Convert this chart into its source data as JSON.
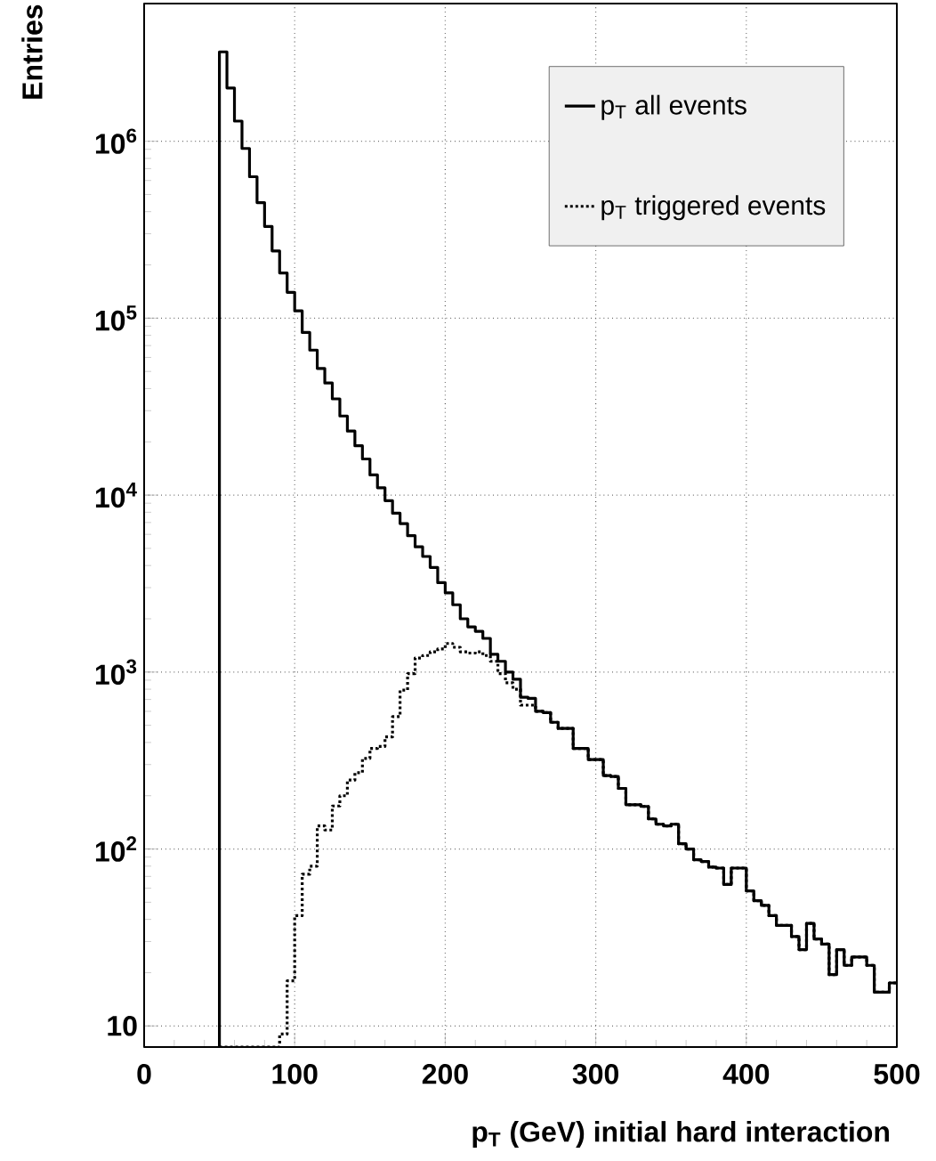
{
  "chart_data": {
    "type": "histogram",
    "xlabel": "p$_{T}$ (GeV) initial hard interaction",
    "ylabel": "Entries",
    "bins": [
      50,
      55,
      60,
      65,
      70,
      75,
      80,
      85,
      90,
      95,
      100,
      105,
      110,
      115,
      120,
      125,
      130,
      135,
      140,
      145,
      150,
      155,
      160,
      165,
      170,
      175,
      180,
      185,
      190,
      195,
      200,
      205,
      210,
      215,
      220,
      225,
      230,
      235,
      240,
      245,
      250,
      255,
      260,
      265,
      270,
      275,
      280,
      285,
      290,
      295,
      300,
      305,
      310,
      315,
      320,
      325,
      330,
      335,
      340,
      345,
      350,
      355,
      360,
      365,
      370,
      375,
      380,
      385,
      390,
      395,
      400,
      405,
      410,
      415,
      420,
      425,
      430,
      435,
      440,
      445,
      450,
      455,
      460,
      465,
      470,
      475,
      480,
      485,
      490,
      495,
      500
    ],
    "series": [
      {
        "name": "p$_{T}$ triggered events",
        "color": "#000000",
        "line_style": "dotted",
        "values": [
          null,
          null,
          null,
          null,
          null,
          null,
          null,
          null,
          9,
          18,
          42,
          72,
          80,
          135,
          128,
          175,
          200,
          245,
          270,
          325,
          370,
          380,
          430,
          560,
          790,
          980,
          1200,
          1240,
          1300,
          1350,
          1450,
          1380,
          1300,
          1280,
          1300,
          1240,
          1150,
          980,
          870,
          800,
          650,
          650,
          600,
          590,
          520,
          480,
          480,
          370,
          370,
          320,
          320,
          260,
          257,
          220,
          178,
          178,
          174,
          148,
          138,
          135,
          138,
          107,
          100,
          87,
          85,
          79,
          78,
          63,
          78,
          78,
          58,
          51,
          48,
          42,
          37,
          37,
          32,
          27,
          38,
          31,
          29,
          19.5,
          27,
          22,
          24.5,
          24.5,
          22,
          15.5,
          15.5,
          17.5
        ]
      },
      {
        "name": "p$_{T}$ all events",
        "color": "#000000",
        "line_style": "solid",
        "values": [
          3200000,
          2000000,
          1300000,
          910000,
          630000,
          450000,
          330000,
          240000,
          180000,
          140000,
          110000,
          83000,
          66000,
          52000,
          43000,
          35000,
          28000,
          23000,
          19000,
          16000,
          13000,
          11000,
          9300,
          7900,
          6900,
          5900,
          5100,
          4500,
          3900,
          3200,
          2800,
          2400,
          2000,
          1800,
          1700,
          1550,
          1260,
          1150,
          1000,
          910,
          720,
          710,
          600,
          590,
          520,
          480,
          480,
          370,
          370,
          320,
          320,
          260,
          257,
          220,
          178,
          178,
          174,
          148,
          138,
          135,
          138,
          107,
          100,
          87,
          85,
          79,
          78,
          63,
          78,
          78,
          58,
          51,
          48,
          42,
          37,
          37,
          32,
          27,
          38,
          31,
          29,
          19.5,
          27,
          22,
          24.5,
          24.5,
          22,
          15.5,
          15.5,
          17.5
        ]
      }
    ],
    "log": "y",
    "xlim": [
      0,
      500
    ],
    "ylim": [
      7.6,
      6000000
    ],
    "xticks": [
      0,
      100,
      200,
      300,
      400,
      500
    ],
    "yticks": [
      10,
      {
        "value": 100,
        "label": "10$^{2}$"
      },
      {
        "value": 1000,
        "label": "10$^{3}$"
      },
      {
        "value": 10000,
        "label": "10$^{4}$"
      },
      {
        "value": 100000,
        "label": "10$^{5}$"
      },
      {
        "value": 1000000,
        "label": "10$^{6}$"
      }
    ],
    "grid": true,
    "legend": "top right"
  }
}
